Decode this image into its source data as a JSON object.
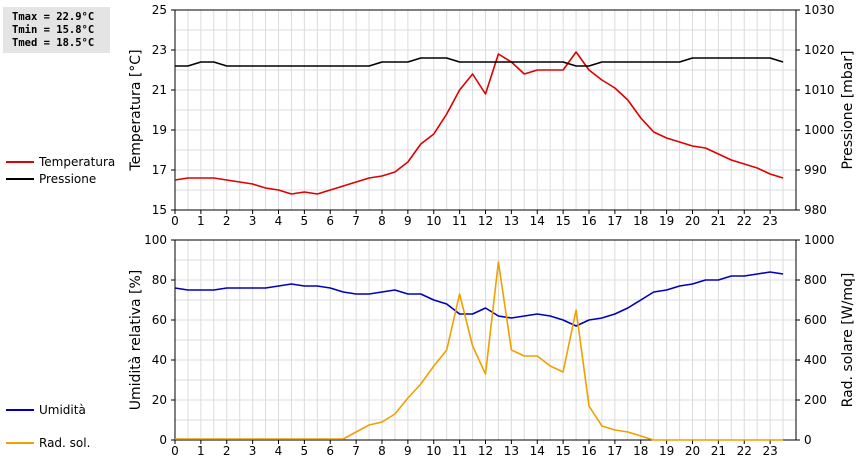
{
  "stats": {
    "tmax": "Tmax = 22.9°C",
    "tmin": "Tmin = 15.8°C",
    "tmed": "Tmed = 18.5°C"
  },
  "legend_top": {
    "temp": {
      "label": "Temperatura",
      "color": "#dd0000"
    },
    "press": {
      "label": "Pressione",
      "color": "#000000"
    }
  },
  "legend_bottom": {
    "hum": {
      "label": "Umidità",
      "color": "#0000bb"
    },
    "rad": {
      "label": "Rad. sol.",
      "color": "#f0a000"
    }
  },
  "chart_data": [
    {
      "type": "line",
      "title": "",
      "xlabel": "",
      "x": [
        0,
        0.5,
        1,
        1.5,
        2,
        2.5,
        3,
        3.5,
        4,
        4.5,
        5,
        5.5,
        6,
        6.5,
        7,
        7.5,
        8,
        8.5,
        9,
        9.5,
        10,
        10.5,
        11,
        11.5,
        12,
        12.5,
        13,
        13.5,
        14,
        14.5,
        15,
        15.5,
        16,
        16.5,
        17,
        17.5,
        18,
        18.5,
        19,
        19.5,
        20,
        20.5,
        21,
        21.5,
        22,
        22.5,
        23,
        23.5
      ],
      "xlim": [
        0,
        24
      ],
      "xticks": [
        "0",
        "1",
        "2",
        "3",
        "4",
        "5",
        "6",
        "7",
        "8",
        "9",
        "10",
        "11",
        "12",
        "13",
        "14",
        "15",
        "16",
        "17",
        "18",
        "19",
        "20",
        "21",
        "22",
        "23"
      ],
      "ylabel_left": "Temperatura [°C]",
      "ylim_left": [
        15,
        25
      ],
      "yticks_left": [
        "15",
        "17",
        "19",
        "21",
        "23",
        "25"
      ],
      "ylabel_right": "Pressione [mbar]",
      "ylim_right": [
        980,
        1030
      ],
      "yticks_right": [
        "980",
        "990",
        "1000",
        "1010",
        "1020",
        "1030"
      ],
      "grid": true,
      "series": [
        {
          "name": "Temperatura",
          "axis": "left",
          "color": "#dd0000",
          "values": [
            16.5,
            16.6,
            16.6,
            16.6,
            16.5,
            16.4,
            16.3,
            16.1,
            16.0,
            15.8,
            15.9,
            15.8,
            16.0,
            16.2,
            16.4,
            16.6,
            16.7,
            16.9,
            17.4,
            18.3,
            18.8,
            19.8,
            21.0,
            21.8,
            20.8,
            22.8,
            22.4,
            21.8,
            22.0,
            22.0,
            22.0,
            22.9,
            22.0,
            21.5,
            21.1,
            20.5,
            19.6,
            18.9,
            18.6,
            18.4,
            18.2,
            18.1,
            17.8,
            17.5,
            17.3,
            17.1,
            16.8,
            16.6
          ]
        },
        {
          "name": "Pressione",
          "axis": "right",
          "color": "#000000",
          "values": [
            1016,
            1016,
            1017,
            1017,
            1016,
            1016,
            1016,
            1016,
            1016,
            1016,
            1016,
            1016,
            1016,
            1016,
            1016,
            1016,
            1017,
            1017,
            1017,
            1018,
            1018,
            1018,
            1017,
            1017,
            1017,
            1017,
            1017,
            1017,
            1017,
            1017,
            1017,
            1016,
            1016,
            1017,
            1017,
            1017,
            1017,
            1017,
            1017,
            1017,
            1018,
            1018,
            1018,
            1018,
            1018,
            1018,
            1018,
            1017
          ]
        }
      ]
    },
    {
      "type": "line",
      "title": "",
      "xlabel": "",
      "x": [
        0,
        0.5,
        1,
        1.5,
        2,
        2.5,
        3,
        3.5,
        4,
        4.5,
        5,
        5.5,
        6,
        6.5,
        7,
        7.5,
        8,
        8.5,
        9,
        9.5,
        10,
        10.5,
        11,
        11.5,
        12,
        12.5,
        13,
        13.5,
        14,
        14.5,
        15,
        15.5,
        16,
        16.5,
        17,
        17.5,
        18,
        18.5,
        19,
        19.5,
        20,
        20.5,
        21,
        21.5,
        22,
        22.5,
        23,
        23.5
      ],
      "xlim": [
        0,
        24
      ],
      "xticks": [
        "0",
        "1",
        "2",
        "3",
        "4",
        "5",
        "6",
        "7",
        "8",
        "9",
        "10",
        "11",
        "12",
        "13",
        "14",
        "15",
        "16",
        "17",
        "18",
        "19",
        "20",
        "21",
        "22",
        "23"
      ],
      "ylabel_left": "Umidità relativa [%]",
      "ylim_left": [
        0,
        100
      ],
      "yticks_left": [
        "0",
        "20",
        "40",
        "60",
        "80",
        "100"
      ],
      "ylabel_right": "Rad. solare [W/mq]",
      "ylim_right": [
        0,
        1000
      ],
      "yticks_right": [
        "0",
        "200",
        "400",
        "600",
        "800",
        "1000"
      ],
      "grid": true,
      "series": [
        {
          "name": "Umidità",
          "axis": "left",
          "color": "#0000bb",
          "values": [
            76,
            75,
            75,
            75,
            76,
            76,
            76,
            76,
            77,
            78,
            77,
            77,
            76,
            74,
            73,
            73,
            74,
            75,
            73,
            73,
            70,
            68,
            63,
            63,
            66,
            62,
            61,
            62,
            63,
            62,
            60,
            57,
            60,
            61,
            63,
            66,
            70,
            74,
            75,
            77,
            78,
            80,
            80,
            82,
            82,
            83,
            84,
            83
          ]
        },
        {
          "name": "Rad. sol.",
          "axis": "right",
          "color": "#f0a000",
          "values": [
            5,
            5,
            5,
            5,
            5,
            5,
            5,
            5,
            5,
            5,
            5,
            5,
            5,
            5,
            40,
            75,
            90,
            130,
            210,
            280,
            370,
            450,
            730,
            470,
            330,
            890,
            450,
            420,
            420,
            370,
            340,
            650,
            170,
            70,
            50,
            40,
            20,
            0,
            0,
            0,
            0,
            0,
            0,
            0,
            0,
            0,
            0,
            0
          ]
        }
      ]
    }
  ]
}
